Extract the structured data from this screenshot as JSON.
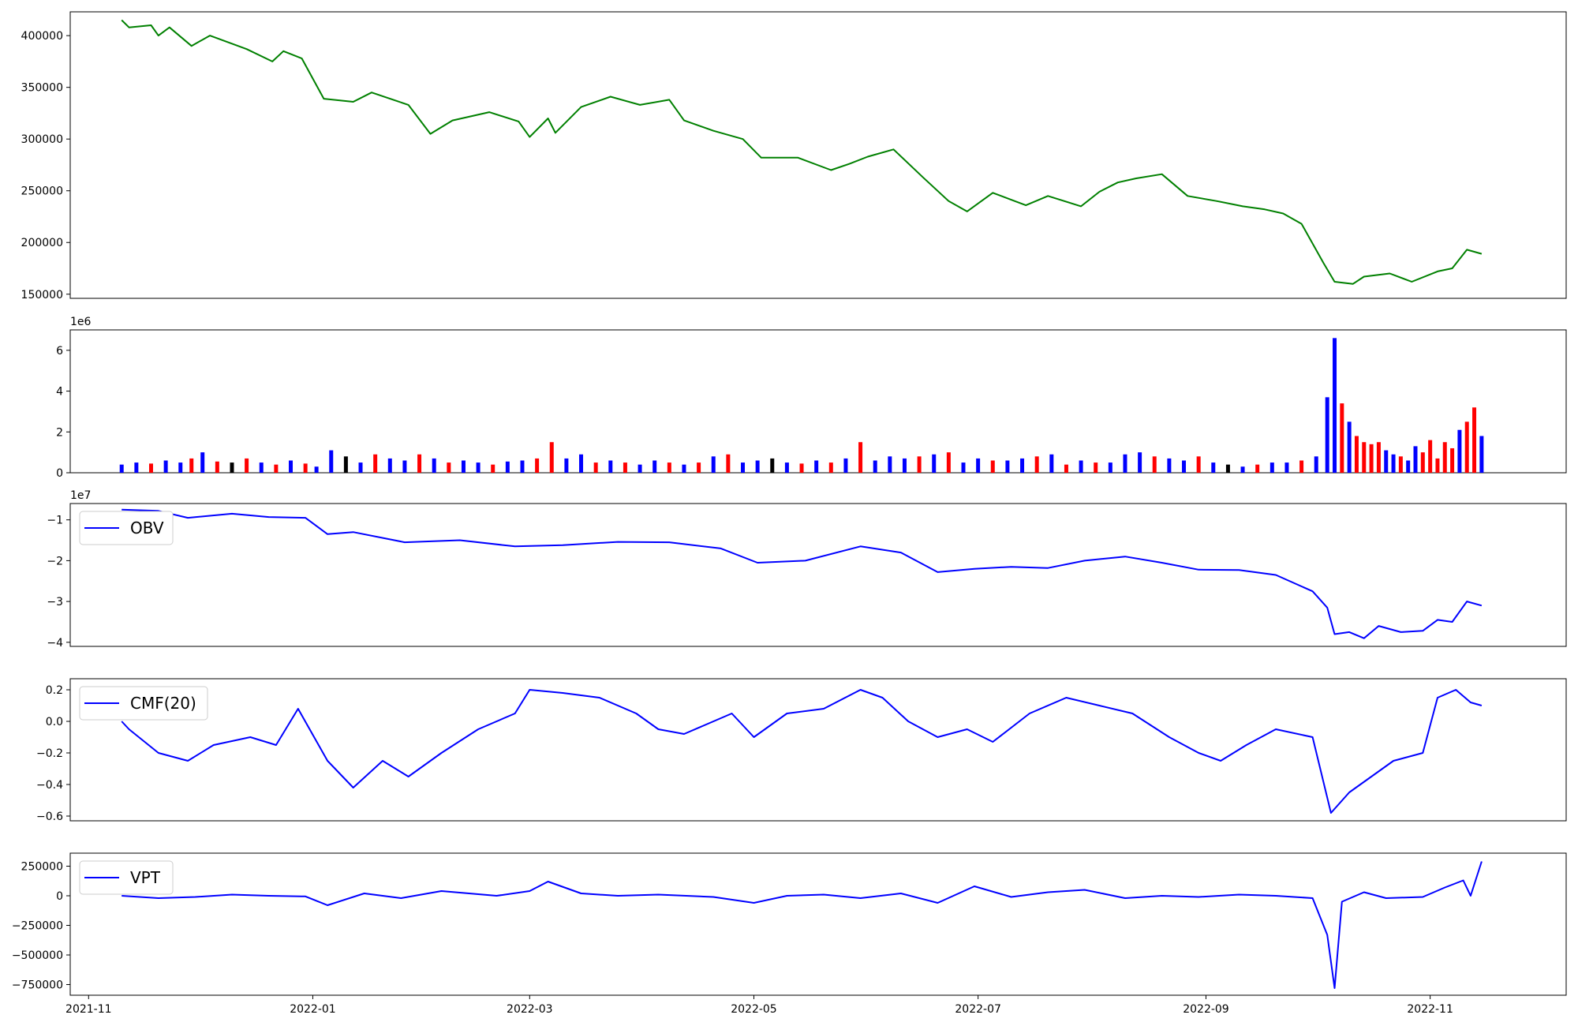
{
  "chart_data": [
    {
      "type": "line",
      "title": "",
      "xlabel": "",
      "ylabel": "",
      "ylim": [
        146000,
        423000
      ],
      "yticks": [
        150000,
        200000,
        250000,
        300000,
        350000,
        400000
      ],
      "ytick_labels": [
        "150000",
        "200000",
        "250000",
        "300000",
        "350000",
        "400000"
      ],
      "grid": false,
      "legend": null,
      "colors": {
        "line": "#008000"
      },
      "series": [
        {
          "x": [
            "2021-11-10",
            "2021-11-12",
            "2021-11-18",
            "2021-11-20",
            "2021-11-23",
            "2021-11-29",
            "2021-12-04",
            "2021-12-14",
            "2021-12-21",
            "2021-12-24",
            "2021-12-29",
            "2022-01-04",
            "2022-01-12",
            "2022-01-17",
            "2022-01-27",
            "2022-02-02",
            "2022-02-08",
            "2022-02-18",
            "2022-02-26",
            "2022-03-01",
            "2022-03-06",
            "2022-03-08",
            "2022-03-15",
            "2022-03-23",
            "2022-03-31",
            "2022-04-08",
            "2022-04-12",
            "2022-04-20",
            "2022-04-28",
            "2022-05-03",
            "2022-05-13",
            "2022-05-22",
            "2022-05-27",
            "2022-06-01",
            "2022-06-08",
            "2022-06-16",
            "2022-06-23",
            "2022-06-28",
            "2022-07-05",
            "2022-07-14",
            "2022-07-20",
            "2022-07-29",
            "2022-08-03",
            "2022-08-08",
            "2022-08-13",
            "2022-08-20",
            "2022-08-27",
            "2022-09-04",
            "2022-09-11",
            "2022-09-17",
            "2022-09-22",
            "2022-09-27",
            "2022-10-03",
            "2022-10-06",
            "2022-10-11",
            "2022-10-14",
            "2022-10-21",
            "2022-10-27",
            "2022-11-03",
            "2022-11-07",
            "2022-11-11",
            "2022-11-15"
          ],
          "y": [
            415000,
            408000,
            410000,
            400000,
            408000,
            390000,
            400000,
            387000,
            375000,
            385000,
            378000,
            339000,
            336000,
            345000,
            333000,
            305000,
            318000,
            326000,
            317000,
            302000,
            320000,
            306000,
            331000,
            341000,
            333000,
            338000,
            318000,
            308000,
            300000,
            282000,
            282000,
            270000,
            276000,
            283000,
            290000,
            263000,
            240000,
            230000,
            248000,
            236000,
            245000,
            235000,
            249000,
            258000,
            262000,
            266000,
            245000,
            240000,
            235000,
            232000,
            228000,
            218000,
            180000,
            162000,
            160000,
            167000,
            170000,
            162000,
            172000,
            175000,
            193000,
            189000
          ]
        }
      ]
    },
    {
      "type": "bar",
      "title": "",
      "xlabel": "",
      "ylabel": "",
      "ylim": [
        0,
        7000000
      ],
      "yticks": [
        0,
        2000000,
        4000000,
        6000000
      ],
      "ytick_labels": [
        "0",
        "2",
        "4",
        "6"
      ],
      "offset_label": "1e6",
      "grid": false,
      "legend": null,
      "colors": {
        "up": "#0000ff",
        "down": "#ff0000",
        "flat": "#000000"
      },
      "series": [
        {
          "x": [
            "2021-11-10",
            "2021-11-14",
            "2021-11-18",
            "2021-11-22",
            "2021-11-26",
            "2021-11-29",
            "2021-12-02",
            "2021-12-06",
            "2021-12-10",
            "2021-12-14",
            "2021-12-18",
            "2021-12-22",
            "2021-12-26",
            "2021-12-30",
            "2022-01-02",
            "2022-01-06",
            "2022-01-10",
            "2022-01-14",
            "2022-01-18",
            "2022-01-22",
            "2022-01-26",
            "2022-01-30",
            "2022-02-03",
            "2022-02-07",
            "2022-02-11",
            "2022-02-15",
            "2022-02-19",
            "2022-02-23",
            "2022-02-27",
            "2022-03-03",
            "2022-03-07",
            "2022-03-11",
            "2022-03-15",
            "2022-03-19",
            "2022-03-23",
            "2022-03-27",
            "2022-03-31",
            "2022-04-04",
            "2022-04-08",
            "2022-04-12",
            "2022-04-16",
            "2022-04-20",
            "2022-04-24",
            "2022-04-28",
            "2022-05-02",
            "2022-05-06",
            "2022-05-10",
            "2022-05-14",
            "2022-05-18",
            "2022-05-22",
            "2022-05-26",
            "2022-05-30",
            "2022-06-03",
            "2022-06-07",
            "2022-06-11",
            "2022-06-15",
            "2022-06-19",
            "2022-06-23",
            "2022-06-27",
            "2022-07-01",
            "2022-07-05",
            "2022-07-09",
            "2022-07-13",
            "2022-07-17",
            "2022-07-21",
            "2022-07-25",
            "2022-07-29",
            "2022-08-02",
            "2022-08-06",
            "2022-08-10",
            "2022-08-14",
            "2022-08-18",
            "2022-08-22",
            "2022-08-26",
            "2022-08-30",
            "2022-09-03",
            "2022-09-07",
            "2022-09-11",
            "2022-09-15",
            "2022-09-19",
            "2022-09-23",
            "2022-09-27",
            "2022-10-01",
            "2022-10-04",
            "2022-10-06",
            "2022-10-08",
            "2022-10-10",
            "2022-10-12",
            "2022-10-14",
            "2022-10-16",
            "2022-10-18",
            "2022-10-20",
            "2022-10-22",
            "2022-10-24",
            "2022-10-26",
            "2022-10-28",
            "2022-10-30",
            "2022-11-01",
            "2022-11-03",
            "2022-11-05",
            "2022-11-07",
            "2022-11-09",
            "2022-11-11",
            "2022-11-13",
            "2022-11-15"
          ],
          "values": [
            400000,
            500000,
            450000,
            600000,
            500000,
            700000,
            1000000,
            550000,
            500000,
            700000,
            500000,
            400000,
            600000,
            450000,
            300000,
            1100000,
            800000,
            500000,
            900000,
            700000,
            600000,
            900000,
            700000,
            500000,
            600000,
            500000,
            400000,
            550000,
            600000,
            700000,
            1500000,
            700000,
            900000,
            500000,
            600000,
            500000,
            400000,
            600000,
            500000,
            400000,
            500000,
            800000,
            900000,
            500000,
            600000,
            700000,
            500000,
            450000,
            600000,
            500000,
            700000,
            1500000,
            600000,
            800000,
            700000,
            800000,
            900000,
            1000000,
            500000,
            700000,
            600000,
            600000,
            700000,
            800000,
            900000,
            400000,
            600000,
            500000,
            500000,
            900000,
            1000000,
            800000,
            700000,
            600000,
            800000,
            500000,
            400000,
            300000,
            400000,
            500000,
            500000,
            600000,
            800000,
            3700000,
            6600000,
            3400000,
            2500000,
            1800000,
            1500000,
            1400000,
            1500000,
            1100000,
            900000,
            800000,
            600000,
            1300000,
            1000000,
            1600000,
            700000,
            1500000,
            1200000,
            2100000,
            2500000,
            3200000,
            1800000
          ],
          "direction": [
            "up",
            "up",
            "down",
            "up",
            "up",
            "down",
            "up",
            "down",
            "flat",
            "down",
            "up",
            "down",
            "up",
            "down",
            "up",
            "up",
            "flat",
            "up",
            "down",
            "up",
            "up",
            "down",
            "up",
            "down",
            "up",
            "up",
            "down",
            "up",
            "up",
            "down",
            "down",
            "up",
            "up",
            "down",
            "up",
            "down",
            "up",
            "up",
            "down",
            "up",
            "down",
            "up",
            "down",
            "up",
            "up",
            "flat",
            "up",
            "down",
            "up",
            "down",
            "up",
            "down",
            "up",
            "up",
            "up",
            "down",
            "up",
            "down",
            "up",
            "up",
            "down",
            "up",
            "up",
            "down",
            "up",
            "down",
            "up",
            "down",
            "up",
            "up",
            "up",
            "down",
            "up",
            "up",
            "down",
            "up",
            "flat",
            "up",
            "down",
            "up",
            "up",
            "down",
            "up",
            "up",
            "up",
            "down",
            "up",
            "down",
            "down",
            "down",
            "down",
            "up",
            "up",
            "down",
            "up",
            "up",
            "down",
            "down",
            "down",
            "down",
            "down",
            "up",
            "down",
            "down",
            "up"
          ]
        }
      ]
    },
    {
      "type": "line",
      "title": "",
      "xlabel": "",
      "ylabel": "",
      "ylim": [
        -41000000,
        -6000000
      ],
      "yticks": [
        -40000000,
        -30000000,
        -20000000,
        -10000000
      ],
      "ytick_labels": [
        "−4",
        "−3",
        "−2",
        "−1"
      ],
      "offset_label": "1e7",
      "grid": false,
      "legend": "upper left",
      "colors": {
        "line": "#0000ff"
      },
      "series": [
        {
          "name": "OBV",
          "x": [
            "2021-11-10",
            "2021-11-20",
            "2021-11-28",
            "2021-12-10",
            "2021-12-20",
            "2021-12-30",
            "2022-01-05",
            "2022-01-12",
            "2022-01-26",
            "2022-02-10",
            "2022-02-25",
            "2022-03-10",
            "2022-03-25",
            "2022-04-08",
            "2022-04-22",
            "2022-05-02",
            "2022-05-15",
            "2022-05-30",
            "2022-06-10",
            "2022-06-20",
            "2022-06-30",
            "2022-07-10",
            "2022-07-20",
            "2022-07-30",
            "2022-08-10",
            "2022-08-20",
            "2022-08-30",
            "2022-09-10",
            "2022-09-20",
            "2022-09-30",
            "2022-10-04",
            "2022-10-06",
            "2022-10-10",
            "2022-10-14",
            "2022-10-18",
            "2022-10-24",
            "2022-10-30",
            "2022-11-03",
            "2022-11-07",
            "2022-11-11",
            "2022-11-15"
          ],
          "y": [
            -7500000,
            -7800000,
            -9500000,
            -8500000,
            -9300000,
            -9500000,
            -13500000,
            -13000000,
            -15500000,
            -15000000,
            -16500000,
            -16200000,
            -15400000,
            -15500000,
            -17000000,
            -20500000,
            -20000000,
            -16500000,
            -18000000,
            -22800000,
            -22000000,
            -21500000,
            -21800000,
            -20000000,
            -19000000,
            -20500000,
            -22200000,
            -22300000,
            -23500000,
            -27500000,
            -31500000,
            -38000000,
            -37500000,
            -39000000,
            -36000000,
            -37500000,
            -37200000,
            -34500000,
            -35000000,
            -30000000,
            -31000000
          ]
        }
      ]
    },
    {
      "type": "line",
      "title": "",
      "xlabel": "",
      "ylabel": "",
      "ylim": [
        -0.63,
        0.27
      ],
      "yticks": [
        -0.6,
        -0.4,
        -0.2,
        0.0,
        0.2
      ],
      "ytick_labels": [
        "−0.6",
        "−0.4",
        "−0.2",
        "0.0",
        "0.2"
      ],
      "grid": false,
      "legend": "upper left",
      "colors": {
        "line": "#0000ff"
      },
      "series": [
        {
          "name": "CMF(20)",
          "x": [
            "2021-11-10",
            "2021-11-12",
            "2021-11-20",
            "2021-11-28",
            "2021-12-05",
            "2021-12-15",
            "2021-12-22",
            "2021-12-28",
            "2022-01-05",
            "2022-01-12",
            "2022-01-20",
            "2022-01-27",
            "2022-02-05",
            "2022-02-15",
            "2022-02-25",
            "2022-03-01",
            "2022-03-10",
            "2022-03-20",
            "2022-03-30",
            "2022-04-05",
            "2022-04-12",
            "2022-04-25",
            "2022-05-01",
            "2022-05-10",
            "2022-05-20",
            "2022-05-30",
            "2022-06-05",
            "2022-06-12",
            "2022-06-20",
            "2022-06-28",
            "2022-07-05",
            "2022-07-15",
            "2022-07-25",
            "2022-08-03",
            "2022-08-12",
            "2022-08-22",
            "2022-08-30",
            "2022-09-05",
            "2022-09-12",
            "2022-09-20",
            "2022-09-30",
            "2022-10-05",
            "2022-10-10",
            "2022-10-16",
            "2022-10-22",
            "2022-10-30",
            "2022-11-03",
            "2022-11-08",
            "2022-11-12",
            "2022-11-15"
          ],
          "y": [
            0.0,
            -0.05,
            -0.2,
            -0.25,
            -0.15,
            -0.1,
            -0.15,
            0.08,
            -0.25,
            -0.42,
            -0.25,
            -0.35,
            -0.2,
            -0.05,
            0.05,
            0.2,
            0.18,
            0.15,
            0.05,
            -0.05,
            -0.08,
            0.05,
            -0.1,
            0.05,
            0.08,
            0.2,
            0.15,
            0.0,
            -0.1,
            -0.05,
            -0.13,
            0.05,
            0.15,
            0.1,
            0.05,
            -0.1,
            -0.2,
            -0.25,
            -0.15,
            -0.05,
            -0.1,
            -0.58,
            -0.45,
            -0.35,
            -0.25,
            -0.2,
            0.15,
            0.2,
            0.12,
            0.1
          ]
        }
      ]
    },
    {
      "type": "line",
      "title": "",
      "xlabel": "",
      "ylabel": "",
      "ylim": [
        -840000,
        360000
      ],
      "yticks": [
        -750000,
        -500000,
        -250000,
        0,
        250000
      ],
      "ytick_labels": [
        "−750000",
        "−500000",
        "−250000",
        "0",
        "250000"
      ],
      "xticks": [
        "2021-11-01",
        "2022-01-01",
        "2022-03-01",
        "2022-05-01",
        "2022-07-01",
        "2022-09-01",
        "2022-11-01"
      ],
      "xtick_labels": [
        "2021-11",
        "2022-01",
        "2022-03",
        "2022-05",
        "2022-07",
        "2022-09",
        "2022-11"
      ],
      "grid": false,
      "legend": "upper left",
      "colors": {
        "line": "#0000ff"
      },
      "series": [
        {
          "name": "VPT",
          "x": [
            "2021-11-10",
            "2021-11-20",
            "2021-11-30",
            "2021-12-10",
            "2021-12-20",
            "2021-12-30",
            "2022-01-05",
            "2022-01-15",
            "2022-01-25",
            "2022-02-05",
            "2022-02-20",
            "2022-03-01",
            "2022-03-06",
            "2022-03-15",
            "2022-03-25",
            "2022-04-05",
            "2022-04-20",
            "2022-05-01",
            "2022-05-10",
            "2022-05-20",
            "2022-05-30",
            "2022-06-10",
            "2022-06-20",
            "2022-06-30",
            "2022-07-10",
            "2022-07-20",
            "2022-07-30",
            "2022-08-10",
            "2022-08-20",
            "2022-08-30",
            "2022-09-10",
            "2022-09-20",
            "2022-09-30",
            "2022-10-04",
            "2022-10-06",
            "2022-10-08",
            "2022-10-14",
            "2022-10-20",
            "2022-10-30",
            "2022-11-05",
            "2022-11-10",
            "2022-11-12",
            "2022-11-15"
          ],
          "y": [
            0,
            -20000,
            -10000,
            10000,
            0,
            -5000,
            -80000,
            20000,
            -20000,
            40000,
            0,
            40000,
            120000,
            20000,
            0,
            10000,
            -10000,
            -60000,
            0,
            10000,
            -20000,
            20000,
            -60000,
            80000,
            -10000,
            30000,
            50000,
            -20000,
            0,
            -10000,
            10000,
            0,
            -20000,
            -330000,
            -780000,
            -50000,
            30000,
            -20000,
            -10000,
            70000,
            130000,
            0,
            290000
          ]
        }
      ]
    }
  ]
}
